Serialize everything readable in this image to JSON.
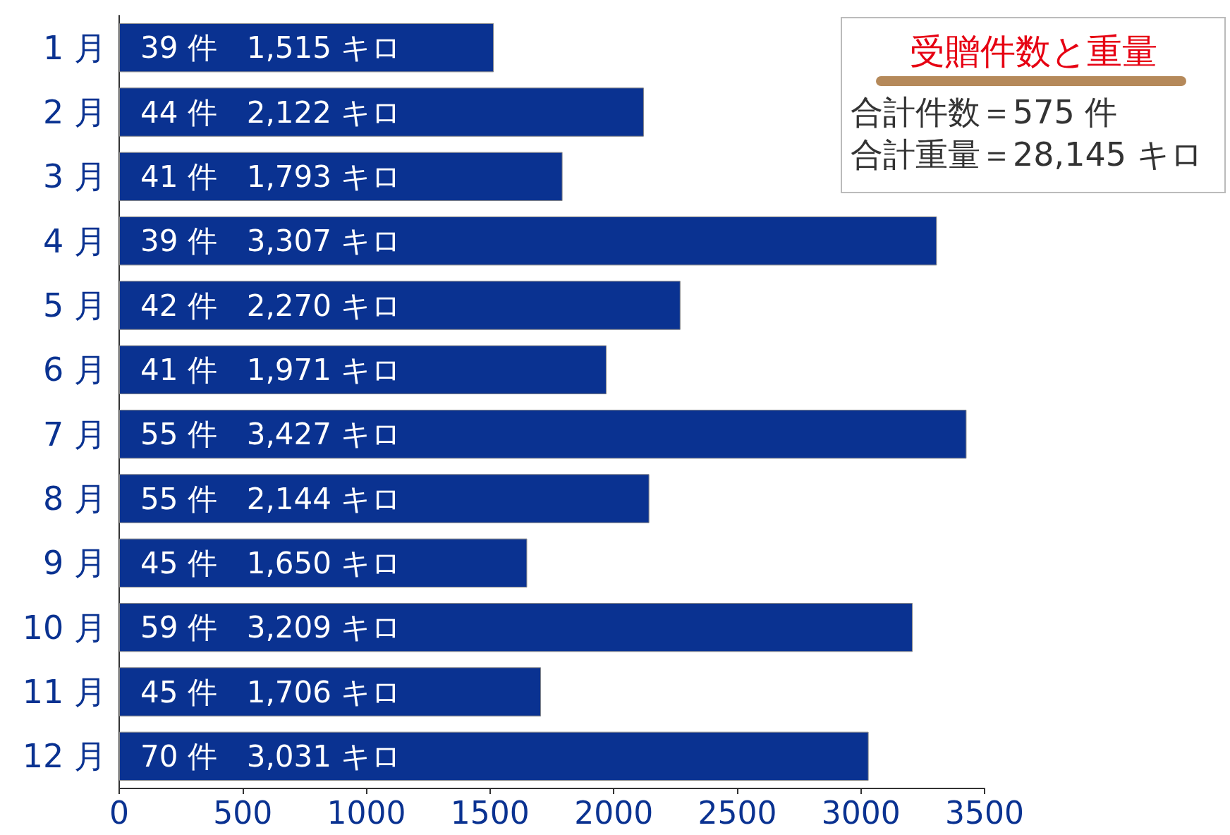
{
  "chart_data": {
    "type": "bar",
    "orientation": "horizontal",
    "title": "受贈件数と重量",
    "annotations": [
      "合計件数＝575 件",
      "合計重量＝28,145 キロ"
    ],
    "categories": [
      "1 月",
      "2 月",
      "3 月",
      "4 月",
      "5 月",
      "6 月",
      "7 月",
      "8 月",
      "9 月",
      "10 月",
      "11 月",
      "12 月"
    ],
    "values": [
      1515,
      2122,
      1793,
      3307,
      2270,
      1971,
      3427,
      2144,
      1650,
      3209,
      1706,
      3031
    ],
    "value_labels": [
      "39 件　1,515 キロ",
      "44 件　2,122 キロ",
      "41 件　1,793 キロ",
      "39 件　3,307 キロ",
      "42 件　2,270 キロ",
      "41 件　1,971 キロ",
      "55 件　3,427 キロ",
      "55 件　2,144 キロ",
      "45 件　1,650 キロ",
      "59 件　3,209 キロ",
      "45 件　1,706 キロ",
      "70 件　3,031 キロ"
    ],
    "color": "#0a3291",
    "xlim": [
      0,
      3500
    ],
    "xticks": [
      0,
      500,
      1000,
      1500,
      2000,
      2500,
      3000,
      3500
    ],
    "grid": false
  }
}
